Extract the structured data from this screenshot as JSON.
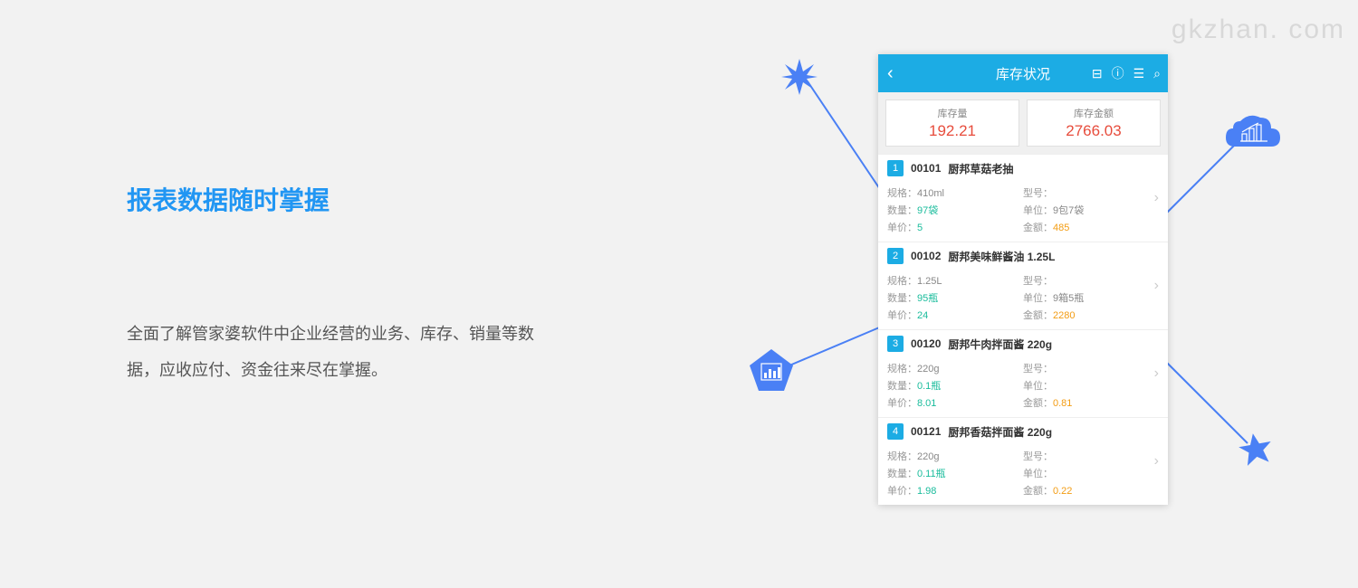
{
  "watermark": "gkzhan. com",
  "title": "报表数据随时掌握",
  "description": "全面了解管家婆软件中企业经营的业务、库存、销量等数据，应收应付、资金往来尽在掌握。",
  "colors": {
    "accent_blue": "#1cace4",
    "decoration_blue": "#4a80f5",
    "title_blue": "#2196f3",
    "value_red": "#e74c3c",
    "value_green": "#1abc9c",
    "value_orange": "#f39c12",
    "background": "#f2f2f2"
  },
  "phone": {
    "header": {
      "title": "库存状况",
      "back": "‹",
      "icons": [
        "⊟",
        "ⓘ",
        "☰",
        "⌕"
      ]
    },
    "summary": [
      {
        "label": "库存量",
        "value": "192.21"
      },
      {
        "label": "库存金额",
        "value": "2766.03"
      }
    ],
    "items": [
      {
        "num": "1",
        "code": "00101",
        "name": "厨邦草菇老抽",
        "spec_lbl": "规格：",
        "spec": "410ml",
        "model_lbl": "型号：",
        "model": "",
        "qty_lbl": "数量：",
        "qty": "97袋",
        "unit_lbl": "单位：",
        "unit": "9包7袋",
        "price_lbl": "单价：",
        "price": "5",
        "amt_lbl": "金额：",
        "amt": "485"
      },
      {
        "num": "2",
        "code": "00102",
        "name": "厨邦美味鲜酱油 1.25L",
        "spec_lbl": "规格：",
        "spec": "1.25L",
        "model_lbl": "型号：",
        "model": "",
        "qty_lbl": "数量：",
        "qty": "95瓶",
        "unit_lbl": "单位：",
        "unit": "9箱5瓶",
        "price_lbl": "单价：",
        "price": "24",
        "amt_lbl": "金额：",
        "amt": "2280"
      },
      {
        "num": "3",
        "code": "00120",
        "name": "厨邦牛肉拌面酱 220g",
        "spec_lbl": "规格：",
        "spec": "220g",
        "model_lbl": "型号：",
        "model": "",
        "qty_lbl": "数量：",
        "qty": "0.1瓶",
        "unit_lbl": "单位：",
        "unit": "",
        "price_lbl": "单价：",
        "price": "8.01",
        "amt_lbl": "金额：",
        "amt": "0.81"
      },
      {
        "num": "4",
        "code": "00121",
        "name": "厨邦香菇拌面酱 220g",
        "spec_lbl": "规格：",
        "spec": "220g",
        "model_lbl": "型号：",
        "model": "",
        "qty_lbl": "数量：",
        "qty": "0.11瓶",
        "unit_lbl": "单位：",
        "unit": "",
        "price_lbl": "单价：",
        "price": "1.98",
        "amt_lbl": "金额：",
        "amt": "0.22"
      }
    ]
  }
}
